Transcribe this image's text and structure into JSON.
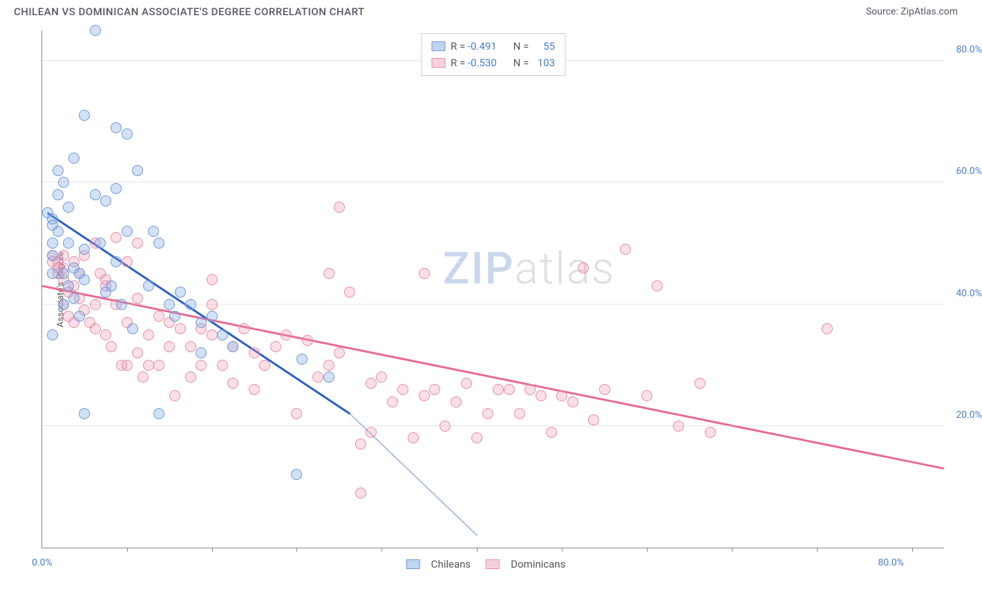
{
  "title": "CHILEAN VS DOMINICAN ASSOCIATE'S DEGREE CORRELATION CHART",
  "source_label": "Source: ZipAtlas.com",
  "ylabel": "Associate's Degree",
  "watermark": {
    "part1": "ZIP",
    "part2": "atlas"
  },
  "chart": {
    "type": "scatter",
    "background_color": "#ffffff",
    "grid_color": "#cccccc",
    "axis_color": "#888888",
    "xlim": [
      0,
      85
    ],
    "ylim": [
      0,
      85
    ],
    "x_tick_labels": [
      {
        "v": 0,
        "t": "0.0%"
      },
      {
        "v": 80,
        "t": "80.0%"
      }
    ],
    "x_tick_marks": [
      8,
      16,
      24,
      32,
      41,
      49,
      57,
      65,
      73,
      82
    ],
    "y_ticks": [
      {
        "v": 20,
        "t": "20.0%"
      },
      {
        "v": 40,
        "t": "40.0%"
      },
      {
        "v": 60,
        "t": "60.0%"
      },
      {
        "v": 80,
        "t": "80.0%"
      }
    ],
    "series": [
      {
        "id": "s1",
        "name": "Chileans",
        "color": "#6a98d8",
        "fill": "rgba(130,170,230,0.35)",
        "R": "-0.491",
        "N": "55",
        "trend": {
          "x1": 0.5,
          "y1": 55,
          "x2": 29,
          "y2": 22,
          "color": "#2a5fc4",
          "dash_after_x": 29,
          "dash_x2": 41,
          "dash_y2": 2
        },
        "points": [
          [
            0.5,
            55
          ],
          [
            1,
            54
          ],
          [
            1,
            53
          ],
          [
            1,
            50
          ],
          [
            1,
            48
          ],
          [
            1,
            45
          ],
          [
            1.5,
            52
          ],
          [
            1.5,
            62
          ],
          [
            1.5,
            58
          ],
          [
            2,
            60
          ],
          [
            2,
            45
          ],
          [
            2,
            40
          ],
          [
            2.5,
            56
          ],
          [
            2.5,
            50
          ],
          [
            2.5,
            43
          ],
          [
            3,
            64
          ],
          [
            3,
            46
          ],
          [
            3,
            41
          ],
          [
            3.5,
            38
          ],
          [
            3.5,
            45
          ],
          [
            4,
            71
          ],
          [
            4,
            49
          ],
          [
            4,
            44
          ],
          [
            4,
            22
          ],
          [
            5,
            85
          ],
          [
            5,
            58
          ],
          [
            5.5,
            50
          ],
          [
            6,
            57
          ],
          [
            6,
            42
          ],
          [
            6.5,
            43
          ],
          [
            7,
            69
          ],
          [
            7,
            59
          ],
          [
            7,
            47
          ],
          [
            7.5,
            40
          ],
          [
            8,
            52
          ],
          [
            8,
            68
          ],
          [
            8.5,
            36
          ],
          [
            9,
            62
          ],
          [
            10,
            43
          ],
          [
            10.5,
            52
          ],
          [
            11,
            50
          ],
          [
            11,
            22
          ],
          [
            12,
            40
          ],
          [
            12.5,
            38
          ],
          [
            13,
            42
          ],
          [
            14,
            40
          ],
          [
            15,
            37
          ],
          [
            15,
            32
          ],
          [
            16,
            38
          ],
          [
            17,
            35
          ],
          [
            18,
            33
          ],
          [
            24,
            12
          ],
          [
            24.5,
            31
          ],
          [
            27,
            28
          ],
          [
            1,
            35
          ]
        ]
      },
      {
        "id": "s2",
        "name": "Dominicans",
        "color": "#e86a8f",
        "fill": "rgba(240,150,175,0.3)",
        "R": "-0.530",
        "N": "103",
        "trend": {
          "x1": 0,
          "y1": 43,
          "x2": 85,
          "y2": 13,
          "color": "#e86a8f"
        },
        "points": [
          [
            1,
            48
          ],
          [
            1,
            47
          ],
          [
            1.5,
            47
          ],
          [
            1.5,
            46
          ],
          [
            1.5,
            45
          ],
          [
            2,
            48
          ],
          [
            2,
            40
          ],
          [
            2,
            46
          ],
          [
            2,
            44
          ],
          [
            2.5,
            42
          ],
          [
            2.5,
            38
          ],
          [
            3,
            47
          ],
          [
            3,
            43
          ],
          [
            3,
            37
          ],
          [
            3.5,
            45
          ],
          [
            3.5,
            41
          ],
          [
            4,
            48
          ],
          [
            4,
            39
          ],
          [
            4.5,
            37
          ],
          [
            5,
            50
          ],
          [
            5,
            40
          ],
          [
            5,
            36
          ],
          [
            5.5,
            45
          ],
          [
            6,
            43
          ],
          [
            6,
            35
          ],
          [
            6.5,
            33
          ],
          [
            7,
            51
          ],
          [
            7,
            40
          ],
          [
            7.5,
            30
          ],
          [
            8,
            47
          ],
          [
            8,
            37
          ],
          [
            8,
            30
          ],
          [
            9,
            41
          ],
          [
            9,
            32
          ],
          [
            9.5,
            28
          ],
          [
            10,
            35
          ],
          [
            10,
            30
          ],
          [
            11,
            38
          ],
          [
            11,
            30
          ],
          [
            12,
            37
          ],
          [
            12,
            33
          ],
          [
            12.5,
            25
          ],
          [
            13,
            36
          ],
          [
            14,
            33
          ],
          [
            14,
            28
          ],
          [
            15,
            36
          ],
          [
            15,
            30
          ],
          [
            16,
            35
          ],
          [
            16,
            40
          ],
          [
            17,
            30
          ],
          [
            18,
            33
          ],
          [
            18,
            27
          ],
          [
            19,
            36
          ],
          [
            20,
            32
          ],
          [
            20,
            26
          ],
          [
            21,
            30
          ],
          [
            22,
            33
          ],
          [
            23,
            35
          ],
          [
            24,
            22
          ],
          [
            25,
            34
          ],
          [
            26,
            28
          ],
          [
            27,
            45
          ],
          [
            27,
            30
          ],
          [
            28,
            56
          ],
          [
            28,
            32
          ],
          [
            29,
            42
          ],
          [
            30,
            17
          ],
          [
            30,
            9
          ],
          [
            31,
            27
          ],
          [
            31,
            19
          ],
          [
            32,
            28
          ],
          [
            33,
            24
          ],
          [
            34,
            26
          ],
          [
            35,
            18
          ],
          [
            36,
            25
          ],
          [
            36,
            45
          ],
          [
            37,
            26
          ],
          [
            38,
            20
          ],
          [
            39,
            24
          ],
          [
            40,
            27
          ],
          [
            41,
            18
          ],
          [
            42,
            22
          ],
          [
            43,
            26
          ],
          [
            44,
            26
          ],
          [
            45,
            22
          ],
          [
            46,
            26
          ],
          [
            47,
            25
          ],
          [
            48,
            19
          ],
          [
            49,
            25
          ],
          [
            50,
            24
          ],
          [
            51,
            46
          ],
          [
            52,
            21
          ],
          [
            53,
            26
          ],
          [
            55,
            49
          ],
          [
            57,
            25
          ],
          [
            58,
            43
          ],
          [
            60,
            20
          ],
          [
            62,
            27
          ],
          [
            63,
            19
          ],
          [
            74,
            36
          ],
          [
            16,
            44
          ],
          [
            6,
            44
          ],
          [
            9,
            50
          ]
        ]
      }
    ]
  },
  "legend_top": {
    "rows": [
      {
        "swatch": "s1",
        "r_lbl": "R =",
        "r_val": "-0.491",
        "n_lbl": "N =",
        "n_val": "55"
      },
      {
        "swatch": "s2",
        "r_lbl": "R =",
        "r_val": "-0.530",
        "n_lbl": "N =",
        "n_val": "103"
      }
    ]
  }
}
